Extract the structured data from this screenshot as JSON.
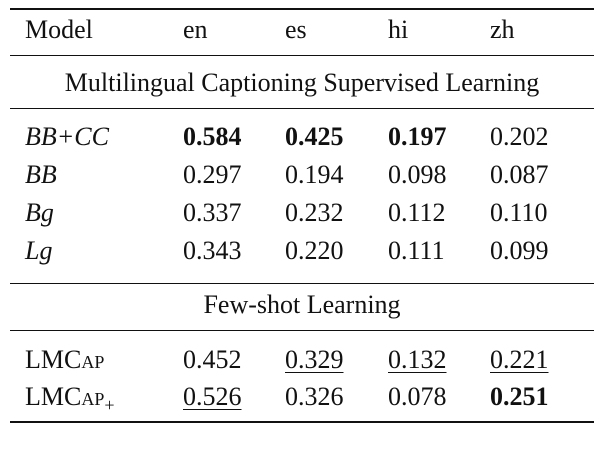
{
  "table": {
    "header": [
      "Model",
      "en",
      "es",
      "hi",
      "zh"
    ],
    "sections": [
      {
        "title": "Multilingual Captioning Supervised Learning",
        "rows": [
          [
            "BB+CC",
            "0.584",
            "0.425",
            "0.197",
            "0.202"
          ],
          [
            "BB",
            "0.297",
            "0.194",
            "0.098",
            "0.087"
          ],
          [
            "Bg",
            "0.337",
            "0.232",
            "0.112",
            "0.110"
          ],
          [
            "Lg",
            "0.343",
            "0.220",
            "0.111",
            "0.099"
          ]
        ]
      },
      {
        "title": "Few-shot Learning",
        "rows": [
          [
            "LMCap",
            "0.452",
            "0.329",
            "0.132",
            "0.221"
          ],
          [
            {
              "name": "LMCap",
              "subscript": "+"
            },
            "0.526",
            "0.326",
            "0.078",
            "0.251"
          ]
        ]
      }
    ]
  }
}
